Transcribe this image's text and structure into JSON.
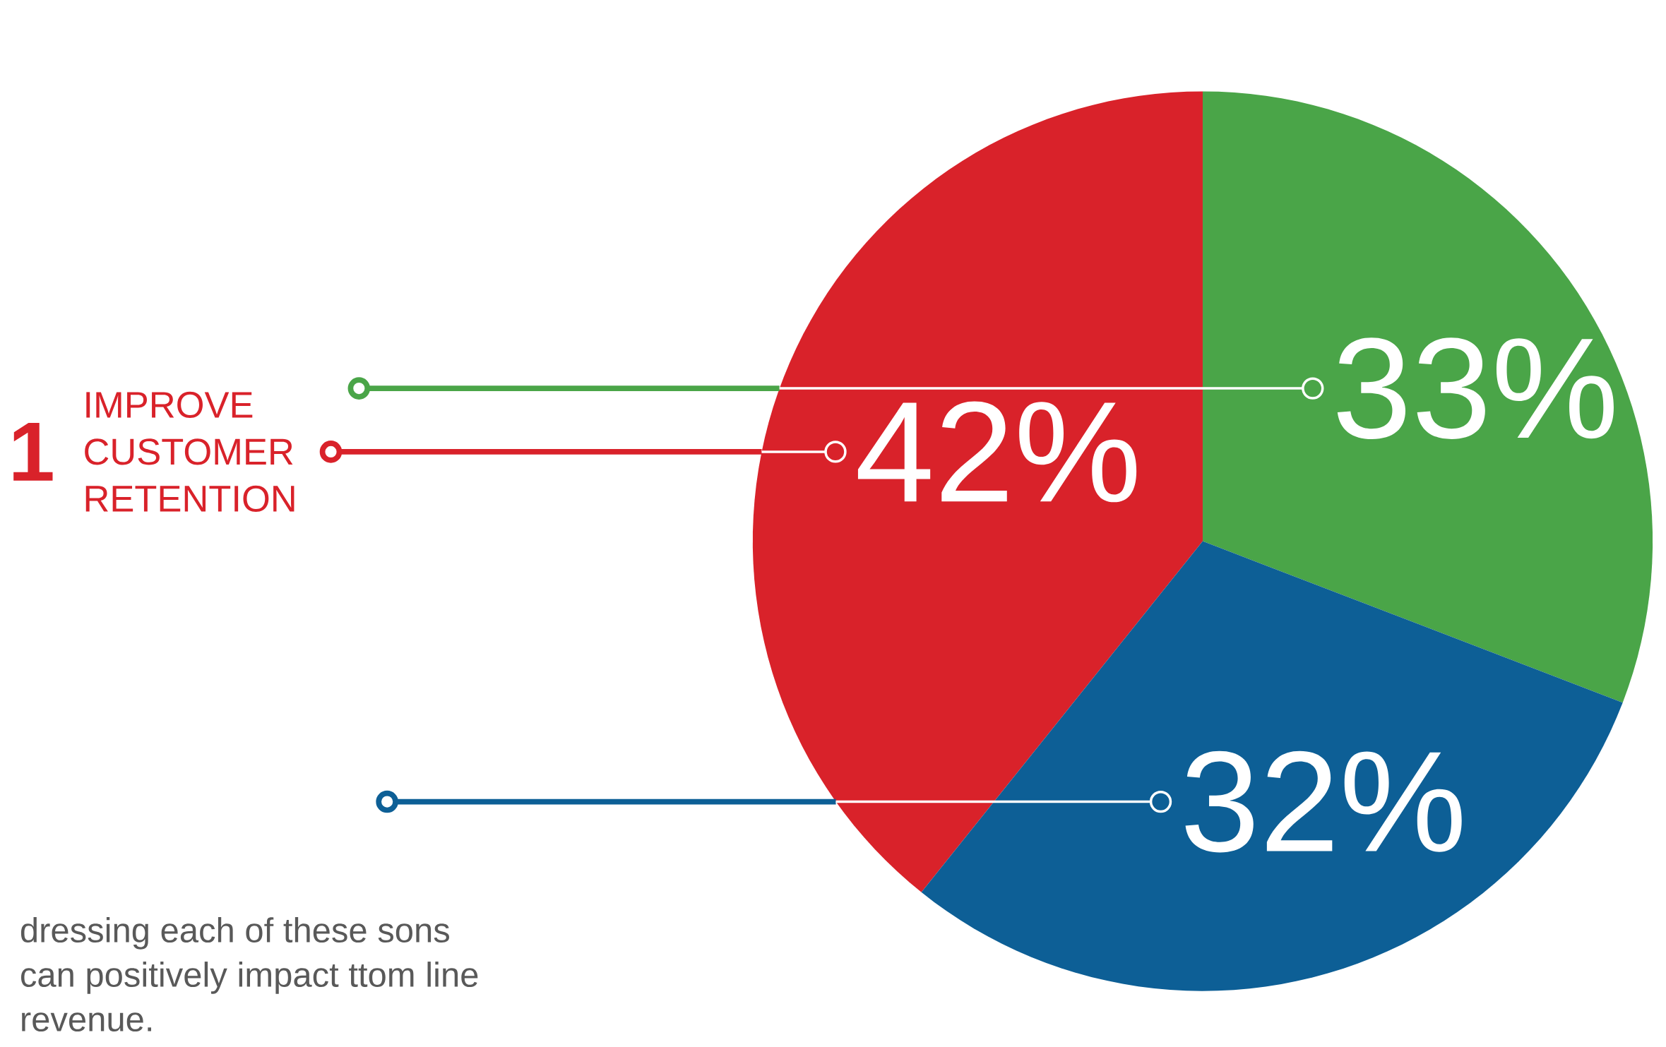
{
  "chart_data": {
    "type": "pie",
    "categories": [
      "IMPROVE CUSTOMER RETENTION",
      null,
      null
    ],
    "values": [
      42,
      33,
      32
    ],
    "colors": [
      "#d9222a",
      "#4aa548",
      "#0d5f96"
    ],
    "value_labels": [
      "42%",
      "33%",
      "32%"
    ],
    "annotations": [
      "1",
      "dressing each of these sons can positively impact ttom line revenue."
    ]
  }
}
